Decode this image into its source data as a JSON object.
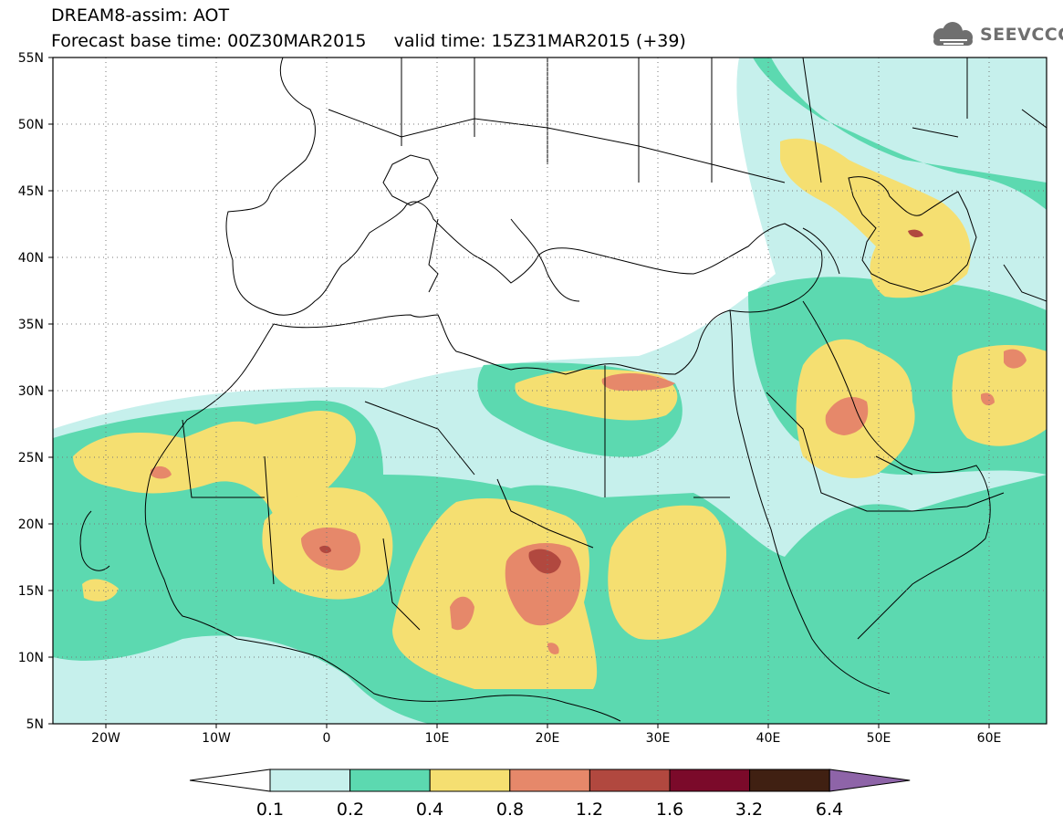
{
  "title": {
    "line1": "DREAM8-assim: AOT",
    "line2": "Forecast base time: 00Z30MAR2015     valid time: 15Z31MAR2015 (+39)"
  },
  "logo": {
    "text": "SEEVCCC",
    "icon": "cloud-icon"
  },
  "map": {
    "lat_labels": [
      "55N",
      "50N",
      "45N",
      "40N",
      "35N",
      "30N",
      "25N",
      "20N",
      "15N",
      "10N",
      "5N"
    ],
    "lon_labels": [
      "20W",
      "10W",
      "0",
      "10E",
      "20E",
      "30E",
      "40E",
      "50E",
      "60E"
    ],
    "colors": {
      "c01": "#c6f0ec",
      "c02": "#5cd9b0",
      "c04": "#f5df71",
      "c08": "#e6886a",
      "c12": "#b1483f",
      "c16": "#7b0a2a",
      "c32": "#402012",
      "c64": "#8e64a8"
    }
  },
  "colorbar": {
    "labels": [
      "0.1",
      "0.2",
      "0.4",
      "0.8",
      "1.2",
      "1.6",
      "3.2",
      "6.4"
    ],
    "colors": [
      "#c6f0ec",
      "#5cd9b0",
      "#f5df71",
      "#e6886a",
      "#b1483f",
      "#7b0a2a",
      "#402012"
    ],
    "under_color": "#ffffff",
    "over_color": "#8e64a8"
  }
}
